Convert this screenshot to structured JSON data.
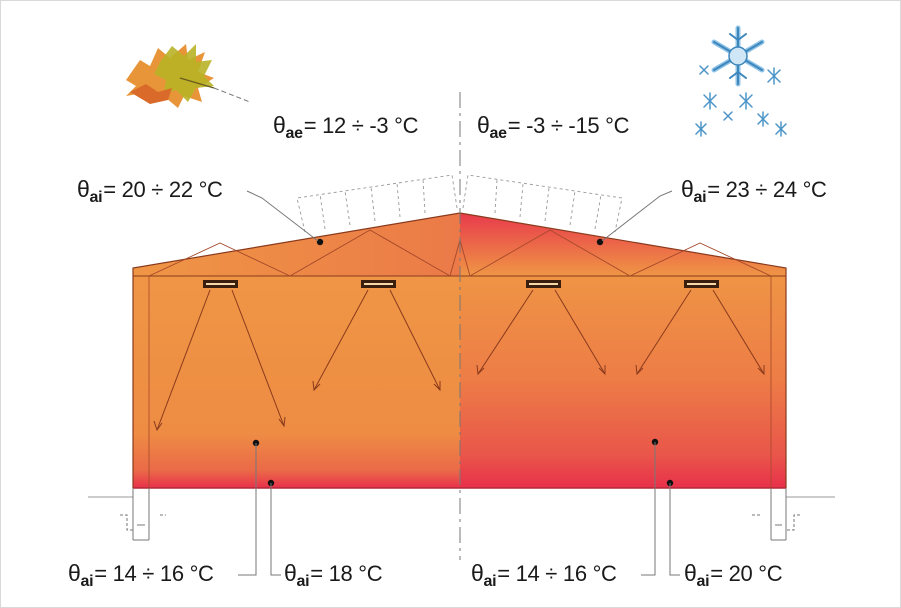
{
  "labels": {
    "autumn_outdoor": {
      "symbol": "θ",
      "sub": "ae",
      "value": "= 12 ÷ -3 °C"
    },
    "winter_outdoor": {
      "symbol": "θ",
      "sub": "ae",
      "value": "= -3 ÷ -15 °C"
    },
    "autumn_roof_air": {
      "symbol": "θ",
      "sub": "ai",
      "value": "= 20 ÷ 22 °C"
    },
    "winter_roof_air": {
      "symbol": "θ",
      "sub": "ai",
      "value": "= 23 ÷ 24 °C"
    },
    "autumn_occupied_zone": {
      "symbol": "θ",
      "sub": "ai",
      "value": "= 14 ÷ 16 °C"
    },
    "autumn_floor_zone": {
      "symbol": "θ",
      "sub": "ai",
      "value": "= 18 °C"
    },
    "winter_occupied_zone": {
      "symbol": "θ",
      "sub": "ai",
      "value": "= 14 ÷ 16 °C"
    },
    "winter_floor_zone": {
      "symbol": "θ",
      "sub": "ai",
      "value": "= 20 °C"
    }
  },
  "icons": {
    "autumn": "maple-leaf-icon",
    "winter": "snowflake-icon"
  },
  "colors": {
    "warm_orange": "#ee9440",
    "hot_red": "#e8304a",
    "outline": "#8a3a1c",
    "heater": "#3a1f0f",
    "axis": "#777777",
    "snow_blue": "#5a9fcf"
  }
}
